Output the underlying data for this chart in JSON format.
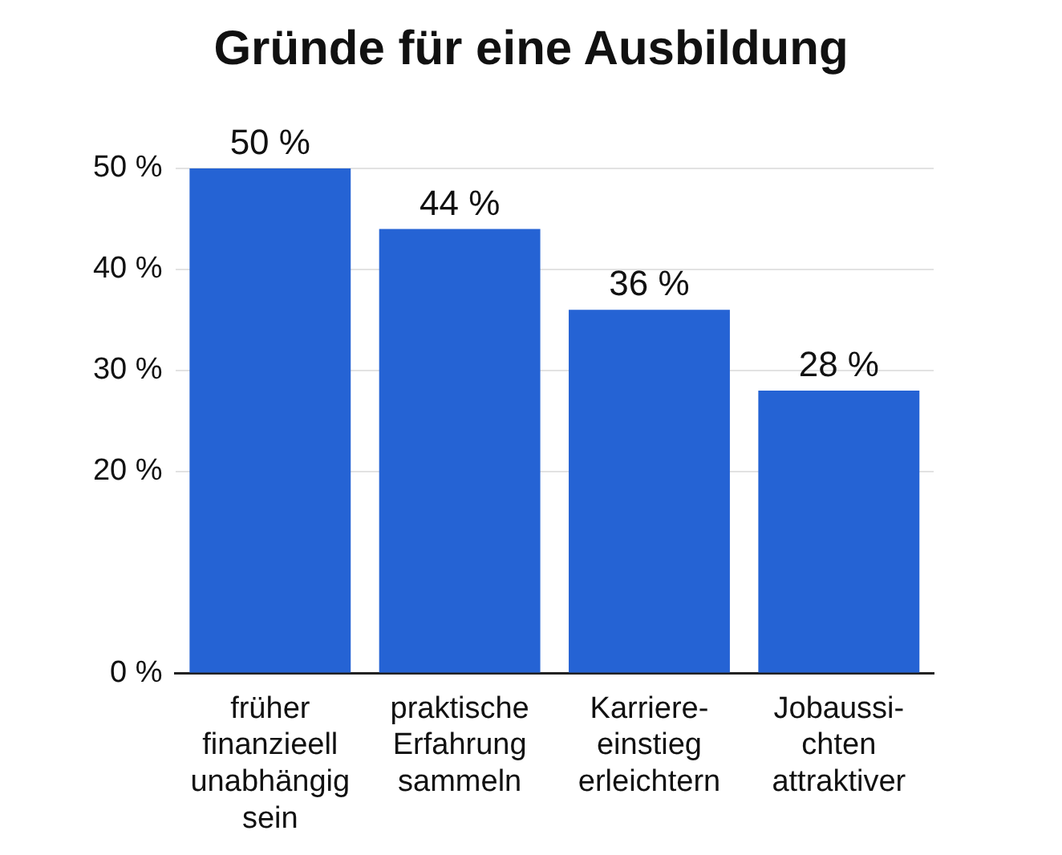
{
  "chart_data": {
    "type": "bar",
    "title": "Gründe für eine Ausbildung",
    "categories": [
      "früher\nfinanzieell\nunabhängig\nsein",
      "praktische\nErfahrung\nsammeln",
      "Karriere-\neinstieg\nerleichtern",
      "Jobaussi-\nchten\nattraktiver"
    ],
    "values": [
      50,
      44,
      36,
      28
    ],
    "value_labels": [
      "50 %",
      "44 %",
      "36 %",
      "28 %"
    ],
    "color": "#2563d4",
    "ylim": [
      0,
      50
    ],
    "yticks": [
      {
        "value": 0,
        "label": "0 %"
      },
      {
        "value": 20,
        "label": "20 %"
      },
      {
        "value": 30,
        "label": "30 %"
      },
      {
        "value": 40,
        "label": "40 %"
      },
      {
        "value": 50,
        "label": "50 %"
      }
    ],
    "grid": "y"
  }
}
